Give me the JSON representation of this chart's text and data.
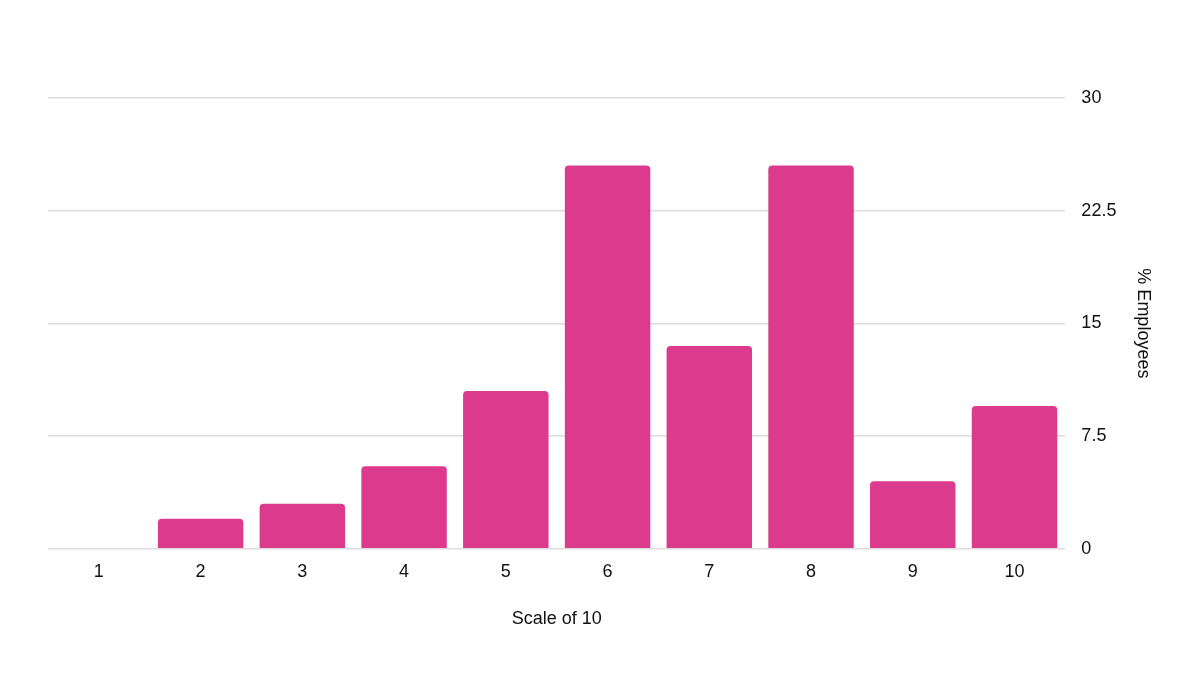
{
  "chart_data": {
    "type": "bar",
    "xlabel": "Scale of 10",
    "ylabel": "% Employees",
    "categories": [
      "1",
      "2",
      "3",
      "4",
      "5",
      "6",
      "7",
      "8",
      "9",
      "10"
    ],
    "values": [
      0,
      2,
      3,
      5.5,
      10.5,
      25.5,
      13.5,
      25.5,
      4.5,
      9.5
    ],
    "color": "#dc3a8c",
    "ylim": [
      0,
      30
    ],
    "yticks": [
      0,
      7.5,
      15,
      22.5,
      30
    ],
    "grid": "y"
  }
}
